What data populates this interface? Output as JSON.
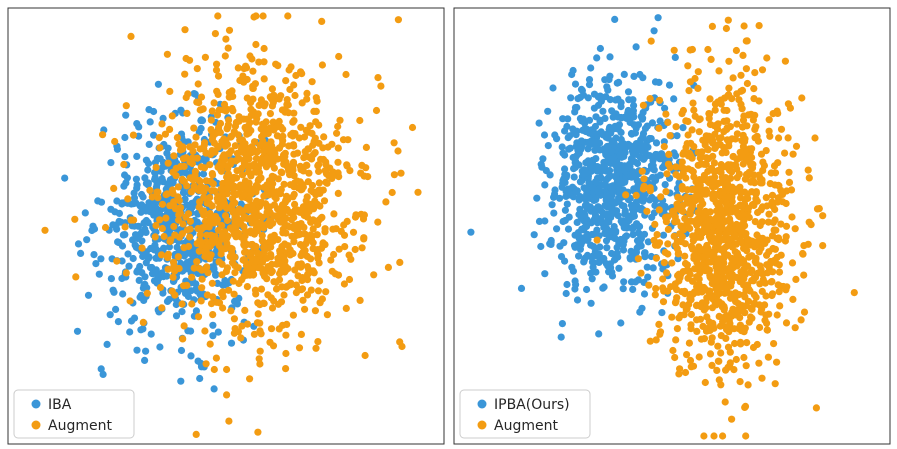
{
  "chart_data": [
    {
      "type": "scatter",
      "title": "",
      "xlabel": "",
      "ylabel": "",
      "xlim": [
        -4,
        4
      ],
      "ylim": [
        -4,
        4
      ],
      "grid": false,
      "legend_position": "bottom-left",
      "series": [
        {
          "name": "IBA",
          "color": "#3a96d8",
          "cluster": {
            "center": [
              -0.85,
              0.0
            ],
            "spread": [
              0.72,
              0.95
            ],
            "n_points": 700
          }
        },
        {
          "name": "Augment",
          "color": "#f39c12",
          "cluster": {
            "center": [
              0.55,
              0.45
            ],
            "spread": [
              0.95,
              1.25
            ],
            "n_points": 1200
          }
        }
      ]
    },
    {
      "type": "scatter",
      "title": "",
      "xlabel": "",
      "ylabel": "",
      "xlim": [
        -4,
        4
      ],
      "ylim": [
        -4,
        4
      ],
      "grid": false,
      "legend_position": "bottom-left",
      "series": [
        {
          "name": "IPBA(Ours)",
          "color": "#3a96d8",
          "cluster": {
            "center": [
              -1.05,
              0.75
            ],
            "spread": [
              0.6,
              0.95
            ],
            "n_points": 800
          }
        },
        {
          "name": "Augment",
          "color": "#f39c12",
          "cluster": {
            "center": [
              0.95,
              -0.05
            ],
            "spread": [
              0.62,
              1.25
            ],
            "n_points": 1100
          }
        }
      ]
    }
  ]
}
